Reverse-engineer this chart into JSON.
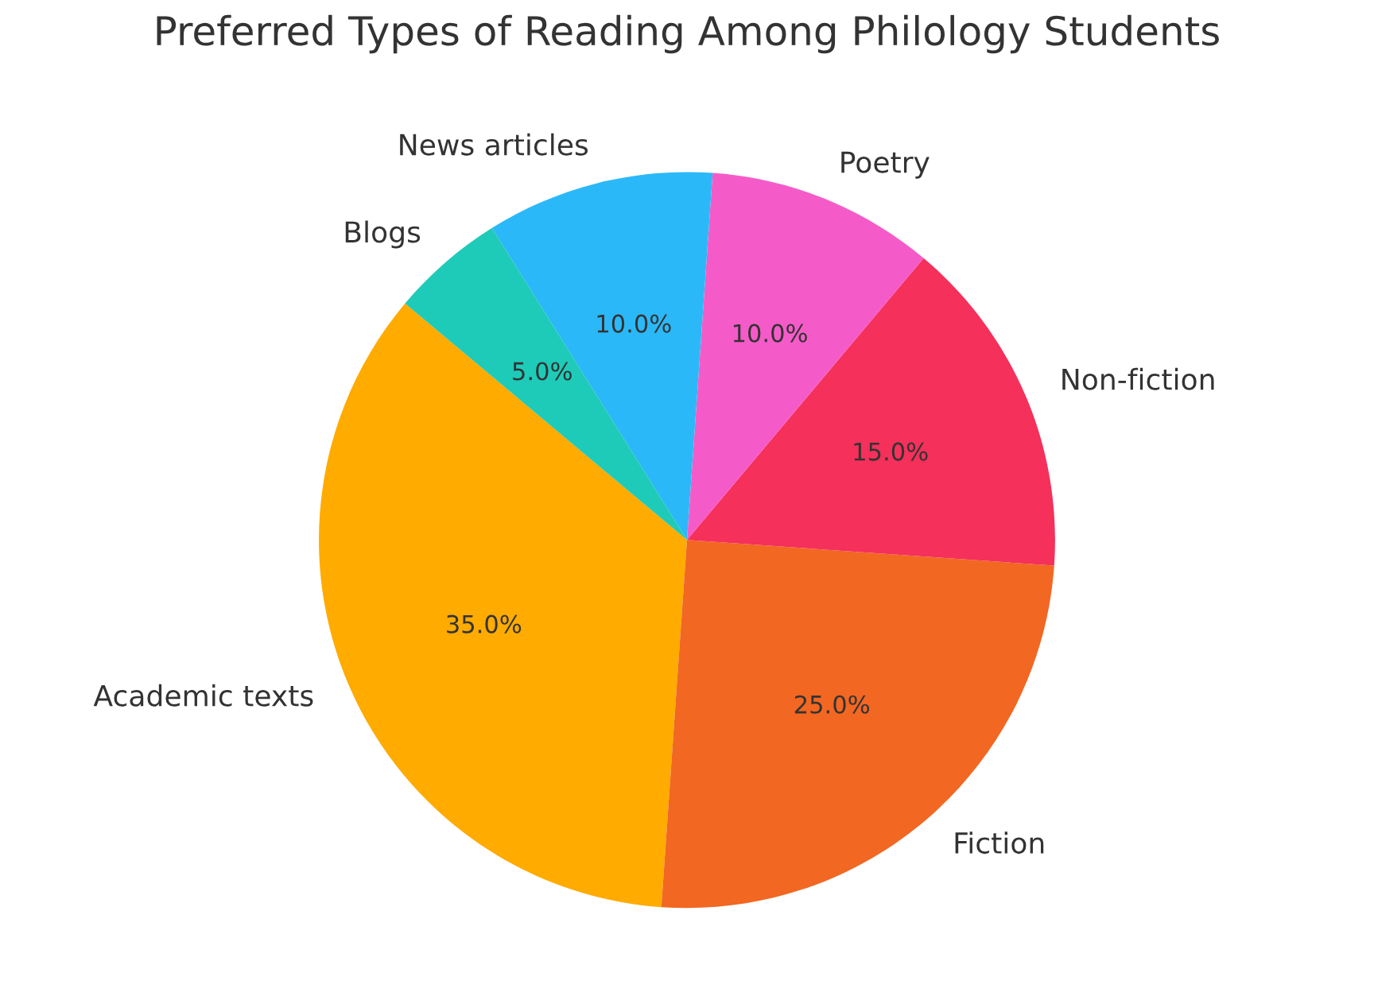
{
  "chart_data": {
    "type": "pie",
    "title": "Preferred Types of Reading Among Philology Students",
    "categories": [
      "Academic texts",
      "Fiction",
      "Non-fiction",
      "Poetry",
      "News articles",
      "Blogs"
    ],
    "values": [
      35,
      25,
      15,
      10,
      10,
      5
    ],
    "value_labels": [
      "35.0%",
      "25.0%",
      "15.0%",
      "10.0%",
      "10.0%",
      "5.0%"
    ],
    "colors": [
      "#ffab00",
      "#f26722",
      "#f5305a",
      "#f55bc8",
      "#2bb8f8",
      "#1ecbb8"
    ]
  }
}
